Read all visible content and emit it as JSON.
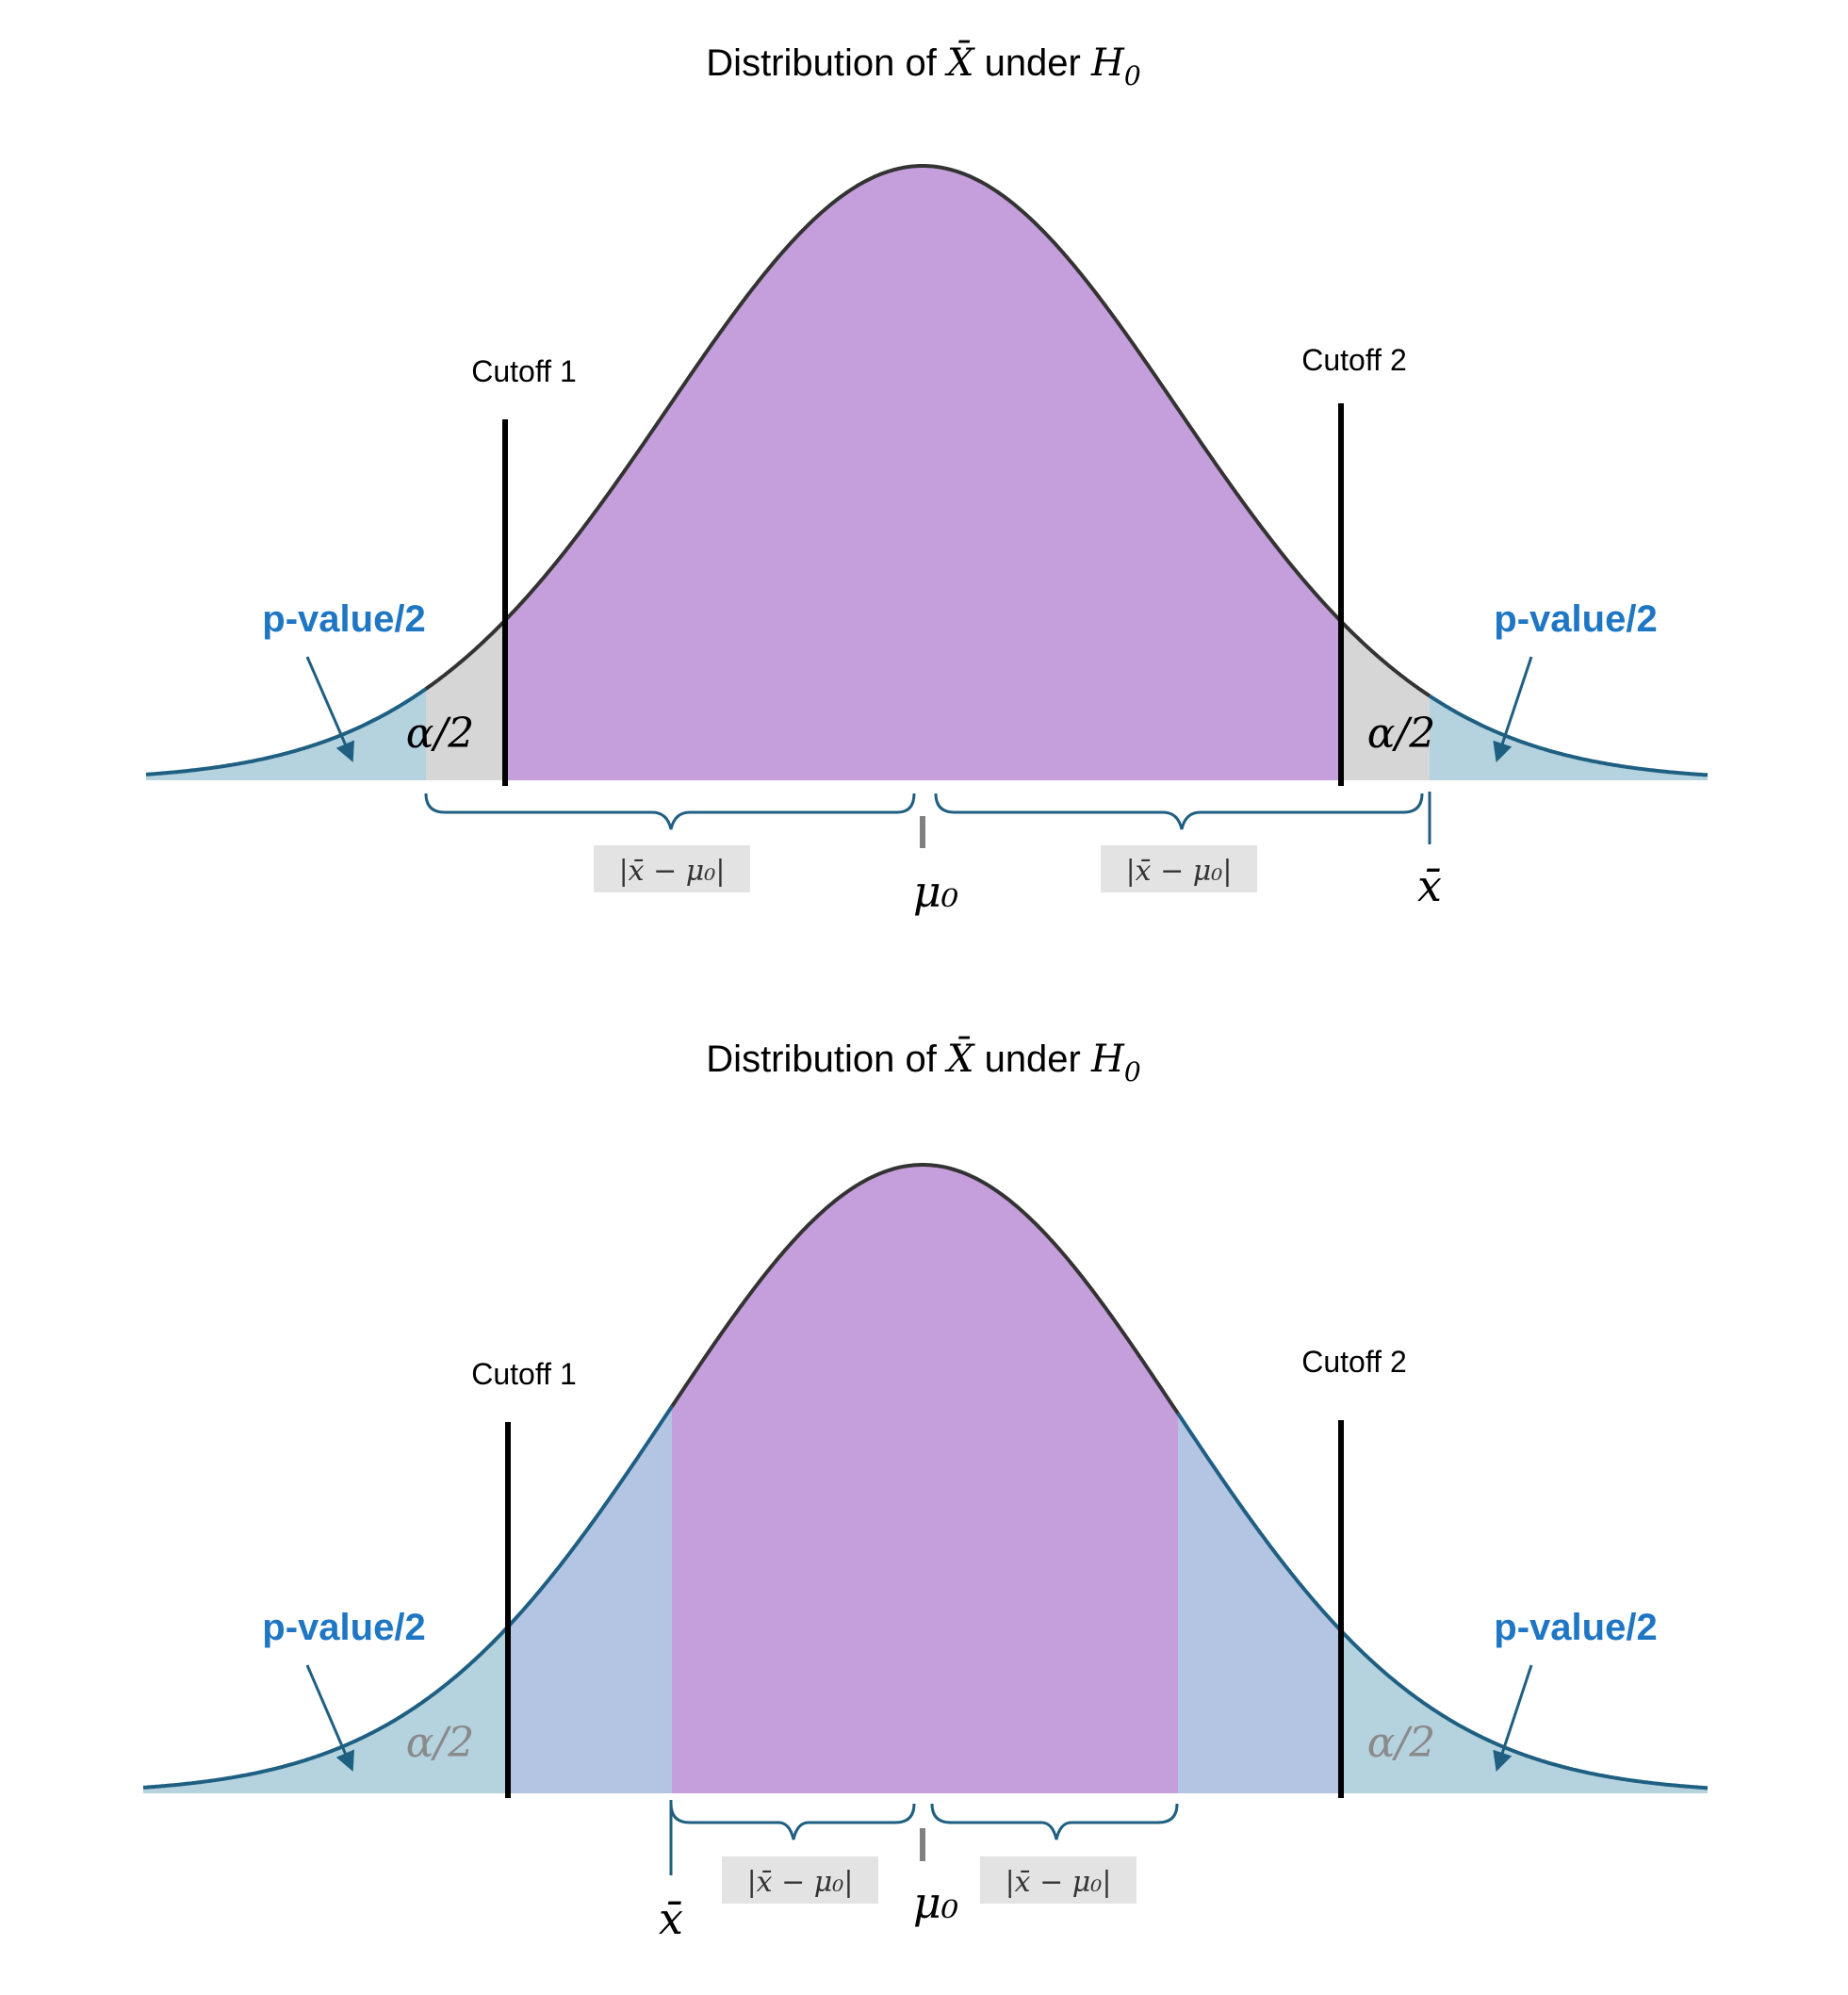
{
  "colors": {
    "purple": "#c59fdb",
    "grey": "#d6d6d6",
    "tail_blue": "#b4d3df",
    "mid_blue": "#b4c5e3",
    "blue_text": "#1f77c4",
    "dark_line": "#1f5f82",
    "curve": "#333333",
    "label_box": "#e3e3e3"
  },
  "panels": [
    {
      "title_prefix": "Distribution of ",
      "title_var": "X̄",
      "title_mid": " under ",
      "title_h": "H",
      "title_sub": "0",
      "cutoff1_label": "Cutoff 1",
      "cutoff2_label": "Cutoff 2",
      "pvalue_left": "p-value/2",
      "pvalue_right": "p-value/2",
      "alpha_left": "α/2",
      "alpha_right": "α/2",
      "diff_left": "|x̄ − μ₀|",
      "diff_right": "|x̄ − μ₀|",
      "mu0": "μ₀",
      "xbar": "x̄"
    },
    {
      "title_prefix": "Distribution of ",
      "title_var": "X̄",
      "title_mid": " under ",
      "title_h": "H",
      "title_sub": "0",
      "cutoff1_label": "Cutoff 1",
      "cutoff2_label": "Cutoff 2",
      "pvalue_left": "p-value/2",
      "pvalue_right": "p-value/2",
      "alpha_left": "α/2",
      "alpha_right": "α/2",
      "diff_left": "|x̄ − μ₀|",
      "diff_right": "|x̄ − μ₀|",
      "mu0": "μ₀",
      "xbar": "x̄"
    }
  ]
}
